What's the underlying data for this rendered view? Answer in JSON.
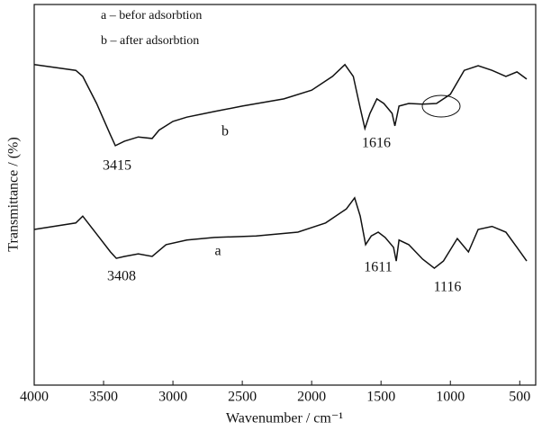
{
  "chart_data": {
    "type": "line",
    "x_label": "Wavenumber / cm⁻¹",
    "y_label": "Transmittance / (%)",
    "legend_notes": [
      "a – befor adsorbtion",
      "b – after adsorbtion"
    ],
    "xlim": [
      4000,
      385
    ],
    "ylim": [
      0,
      100
    ],
    "xticks": [
      4000,
      3500,
      3000,
      2500,
      2000,
      1500,
      1000,
      500
    ],
    "series": [
      {
        "name": "b",
        "color": "#111111",
        "x": [
          4000,
          3700,
          3650,
          3550,
          3450,
          3415,
          3350,
          3250,
          3150,
          3100,
          3000,
          2900,
          2700,
          2500,
          2200,
          2000,
          1850,
          1760,
          1700,
          1650,
          1616,
          1580,
          1530,
          1480,
          1420,
          1400,
          1370,
          1300,
          1200,
          1100,
          1000,
          900,
          800,
          700,
          600,
          520,
          450
        ],
        "values": [
          84.2,
          82.7,
          81.1,
          74,
          65.7,
          62.9,
          64.1,
          65.2,
          64.8,
          67,
          69.3,
          70.4,
          71.9,
          73.3,
          75.2,
          77.5,
          81.1,
          84.2,
          81.1,
          72.8,
          67.4,
          71.4,
          75.2,
          74,
          71.4,
          68.1,
          73.3,
          74,
          73.8,
          74,
          76.4,
          82.7,
          83.9,
          82.7,
          81.1,
          82.3,
          80.4
        ]
      },
      {
        "name": "a",
        "color": "#111111",
        "x": [
          4000,
          3700,
          3650,
          3550,
          3450,
          3408,
          3350,
          3250,
          3150,
          3050,
          2900,
          2700,
          2400,
          2100,
          1900,
          1750,
          1690,
          1650,
          1611,
          1570,
          1520,
          1470,
          1410,
          1390,
          1370,
          1300,
          1200,
          1116,
          1050,
          950,
          870,
          800,
          700,
          600,
          520,
          450
        ],
        "values": [
          40.9,
          42.6,
          44.4,
          39.7,
          35,
          33.3,
          33.8,
          34.5,
          33.8,
          36.9,
          38.1,
          38.8,
          39.2,
          40.2,
          42.6,
          46.3,
          49.2,
          44.4,
          36.9,
          39.2,
          40.2,
          38.8,
          36.2,
          32.6,
          38.1,
          36.9,
          33.1,
          30.7,
          32.6,
          38.5,
          35,
          40.9,
          41.7,
          40.2,
          36.2,
          32.6
        ]
      }
    ],
    "annotations": [
      "3415",
      "1616",
      "3408",
      "1611",
      "1116"
    ]
  }
}
